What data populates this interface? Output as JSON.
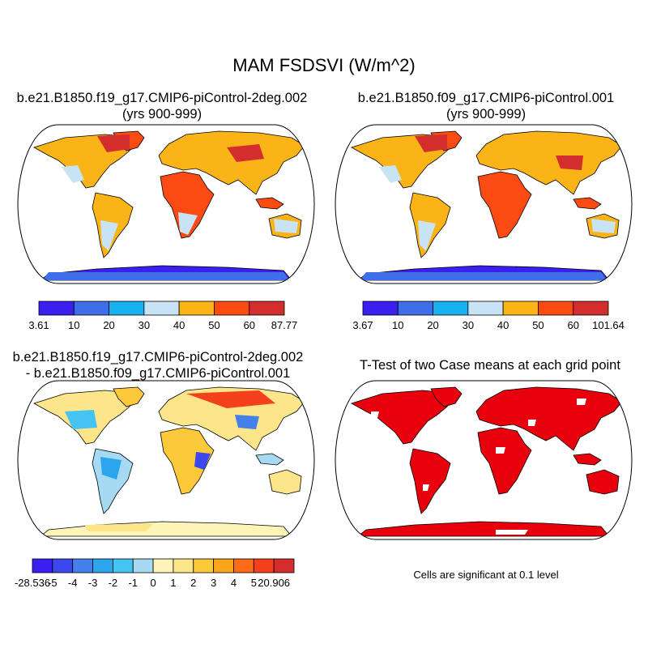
{
  "title": "MAM FSDSVI (W/m^2)",
  "chart_data": [
    {
      "type": "heatmap",
      "projection": "Robinson world map",
      "title_line1": "b.e21.B1850.f19_g17.CMIP6-piControl-2deg.002",
      "title_line2": "(yrs 900-999)",
      "colorbar": {
        "labels": [
          "3.61",
          "10",
          "20",
          "30",
          "40",
          "50",
          "60",
          "87.77"
        ],
        "colors": [
          "#3a1ff0",
          "#3f6fe8",
          "#19b2f0",
          "#c8e3f4",
          "#fbb417",
          "#fb4a12",
          "#d42d2d"
        ]
      }
    },
    {
      "type": "heatmap",
      "projection": "Robinson world map",
      "title_line1": "b.e21.B1850.f09_g17.CMIP6-piControl.001",
      "title_line2": "(yrs 900-999)",
      "colorbar": {
        "labels": [
          "3.67",
          "10",
          "20",
          "30",
          "40",
          "50",
          "60",
          "101.64"
        ],
        "colors": [
          "#3a1ff0",
          "#3f6fe8",
          "#19b2f0",
          "#c8e3f4",
          "#fbb417",
          "#fb4a12",
          "#d42d2d"
        ]
      }
    },
    {
      "type": "heatmap",
      "projection": "Robinson world map",
      "title_line1": "b.e21.B1850.f19_g17.CMIP6-piControl-2deg.002",
      "title_line2": "- b.e21.B1850.f09_g17.CMIP6-piControl.001",
      "colorbar": {
        "labels": [
          "-28.536",
          "-5",
          "-4",
          "-3",
          "-2",
          "-1",
          "0",
          "1",
          "2",
          "3",
          "4",
          "5",
          "20.906"
        ],
        "colors": [
          "#3a1ff0",
          "#3b48ee",
          "#4580ea",
          "#2ba5ee",
          "#45c4f3",
          "#a6d9f2",
          "#fdf5b8",
          "#fde58a",
          "#fcc93a",
          "#fba51a",
          "#fb6c18",
          "#f4401c",
          "#d42d2d"
        ]
      }
    },
    {
      "type": "heatmap",
      "projection": "Robinson world map",
      "title_line1": "T-Test of two Case means at each grid point",
      "significance_color": "#e8000d",
      "note": "Cells are significant at 0.1 level"
    }
  ]
}
